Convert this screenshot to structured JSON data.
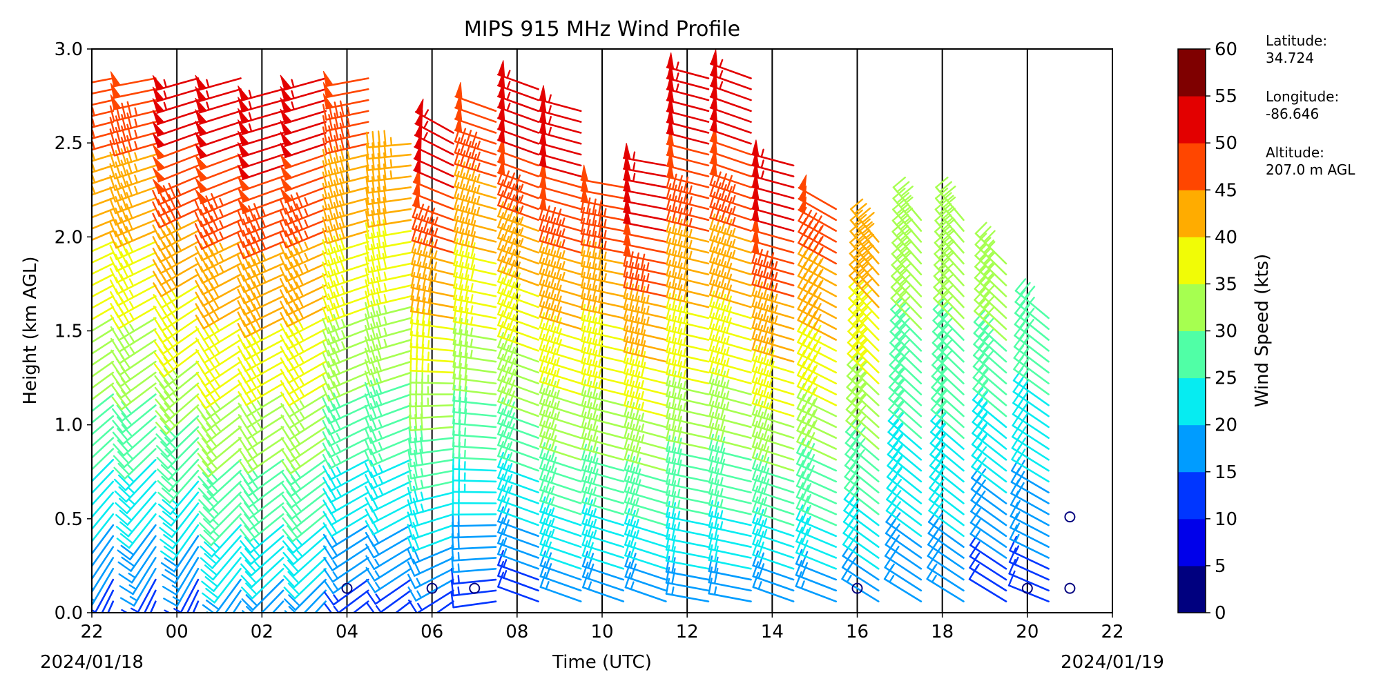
{
  "chart_data": {
    "type": "wind_barbs",
    "title": "MIPS 915 MHz Wind Profile",
    "xlabel": "Time (UTC)",
    "ylabel": "Height (km AGL)",
    "x_tick_labels": [
      "22",
      "00",
      "02",
      "04",
      "06",
      "08",
      "10",
      "12",
      "14",
      "16",
      "18",
      "20",
      "22"
    ],
    "x_tick_hours": [
      -2,
      0,
      2,
      4,
      6,
      8,
      10,
      12,
      14,
      16,
      18,
      20,
      22
    ],
    "xlim_hours": [
      -2,
      22
    ],
    "y_tick_labels": [
      "0.0",
      "0.5",
      "1.0",
      "1.5",
      "2.0",
      "2.5",
      "3.0"
    ],
    "ylim": [
      0,
      3
    ],
    "start_date": "2024/01/18",
    "end_date": "2024/01/19",
    "day_lines_hours": [
      0,
      2,
      4,
      6,
      8,
      10,
      12,
      14,
      16,
      18,
      20
    ],
    "colorbar": {
      "label": "Wind Speed (kts)",
      "ticks": [
        "0",
        "5",
        "10",
        "15",
        "20",
        "25",
        "30",
        "35",
        "40",
        "45",
        "50",
        "55",
        "60"
      ],
      "colors": [
        "#00007f",
        "#0000ea",
        "#0036ff",
        "#009cff",
        "#06ecf1",
        "#50ffa6",
        "#a6ff50",
        "#f1fc06",
        "#ffac00",
        "#ff4600",
        "#e30000",
        "#7f0000"
      ]
    },
    "site_info": [
      {
        "label": "Latitude:",
        "value": "34.724"
      },
      {
        "label": "Longitude:",
        "value": "-86.646"
      },
      {
        "label": "Altitude:",
        "value": "207.0 m AGL"
      }
    ],
    "profiles": [
      {
        "hour": -1.5,
        "top": 2.9,
        "spd_low": 10,
        "spd_high": 50,
        "dir_low": 200,
        "dir_high": 260
      },
      {
        "hour": -0.5,
        "top": 2.9,
        "spd_low": 10,
        "spd_high": 50,
        "dir_low": 200,
        "dir_high": 260
      },
      {
        "hour": 0.5,
        "top": 2.9,
        "spd_low": 10,
        "spd_high": 55,
        "dir_low": 200,
        "dir_high": 255
      },
      {
        "hour": 1.5,
        "top": 2.9,
        "spd_low": 15,
        "spd_high": 55,
        "dir_low": 210,
        "dir_high": 255
      },
      {
        "hour": 2.5,
        "top": 2.8,
        "spd_low": 15,
        "spd_high": 55,
        "dir_low": 220,
        "dir_high": 255
      },
      {
        "hour": 3.5,
        "top": 2.9,
        "spd_low": 15,
        "spd_high": 55,
        "dir_low": 220,
        "dir_high": 255
      },
      {
        "hour": 4.5,
        "top": 2.9,
        "spd_low": 10,
        "spd_high": 50,
        "dir_low": 230,
        "dir_high": 260
      },
      {
        "hour": 5.5,
        "top": 2.5,
        "spd_low": 10,
        "spd_high": 45,
        "dir_low": 230,
        "dir_high": 265
      },
      {
        "hour": 6.5,
        "top": 2.6,
        "spd_low": 10,
        "spd_high": 55,
        "dir_low": 230,
        "dir_high": 300
      },
      {
        "hour": 7.5,
        "top": 2.7,
        "spd_low": 10,
        "spd_high": 50,
        "dir_low": 260,
        "dir_high": 290
      },
      {
        "hour": 8.5,
        "top": 2.8,
        "spd_low": 10,
        "spd_high": 55,
        "dir_low": 290,
        "dir_high": 290
      },
      {
        "hour": 9.5,
        "top": 2.7,
        "spd_low": 15,
        "spd_high": 55,
        "dir_low": 290,
        "dir_high": 285
      },
      {
        "hour": 10.5,
        "top": 2.3,
        "spd_low": 15,
        "spd_high": 50,
        "dir_low": 290,
        "dir_high": 280
      },
      {
        "hour": 11.5,
        "top": 2.4,
        "spd_low": 15,
        "spd_high": 55,
        "dir_low": 290,
        "dir_high": 280
      },
      {
        "hour": 12.5,
        "top": 2.9,
        "spd_low": 15,
        "spd_high": 55,
        "dir_low": 280,
        "dir_high": 285
      },
      {
        "hour": 13.5,
        "top": 2.9,
        "spd_low": 15,
        "spd_high": 55,
        "dir_low": 280,
        "dir_high": 290
      },
      {
        "hour": 14.5,
        "top": 2.4,
        "spd_low": 15,
        "spd_high": 55,
        "dir_low": 290,
        "dir_high": 285
      },
      {
        "hour": 15.5,
        "top": 2.2,
        "spd_low": 15,
        "spd_high": 50,
        "dir_low": 290,
        "dir_high": 300
      },
      {
        "hour": 16.5,
        "top": 2.0,
        "spd_low": 15,
        "spd_high": 45,
        "dir_low": 300,
        "dir_high": 320
      },
      {
        "hour": 17.5,
        "top": 2.1,
        "spd_low": 15,
        "spd_high": 35,
        "dir_low": 300,
        "dir_high": 320
      },
      {
        "hour": 18.5,
        "top": 2.1,
        "spd_low": 15,
        "spd_high": 35,
        "dir_low": 300,
        "dir_high": 320
      },
      {
        "hour": 19.5,
        "top": 1.9,
        "spd_low": 10,
        "spd_high": 35,
        "dir_low": 300,
        "dir_high": 315
      },
      {
        "hour": 20.5,
        "top": 1.6,
        "spd_low": 10,
        "spd_high": 30,
        "dir_low": 290,
        "dir_high": 310
      }
    ],
    "calm_markers": [
      {
        "hour": 4,
        "height": 0.13
      },
      {
        "hour": 6,
        "height": 0.13
      },
      {
        "hour": 7,
        "height": 0.13
      },
      {
        "hour": 16,
        "height": 0.13
      },
      {
        "hour": 20,
        "height": 0.13
      },
      {
        "hour": 21,
        "height": 0.13
      },
      {
        "hour": 21,
        "height": 0.51
      }
    ]
  }
}
